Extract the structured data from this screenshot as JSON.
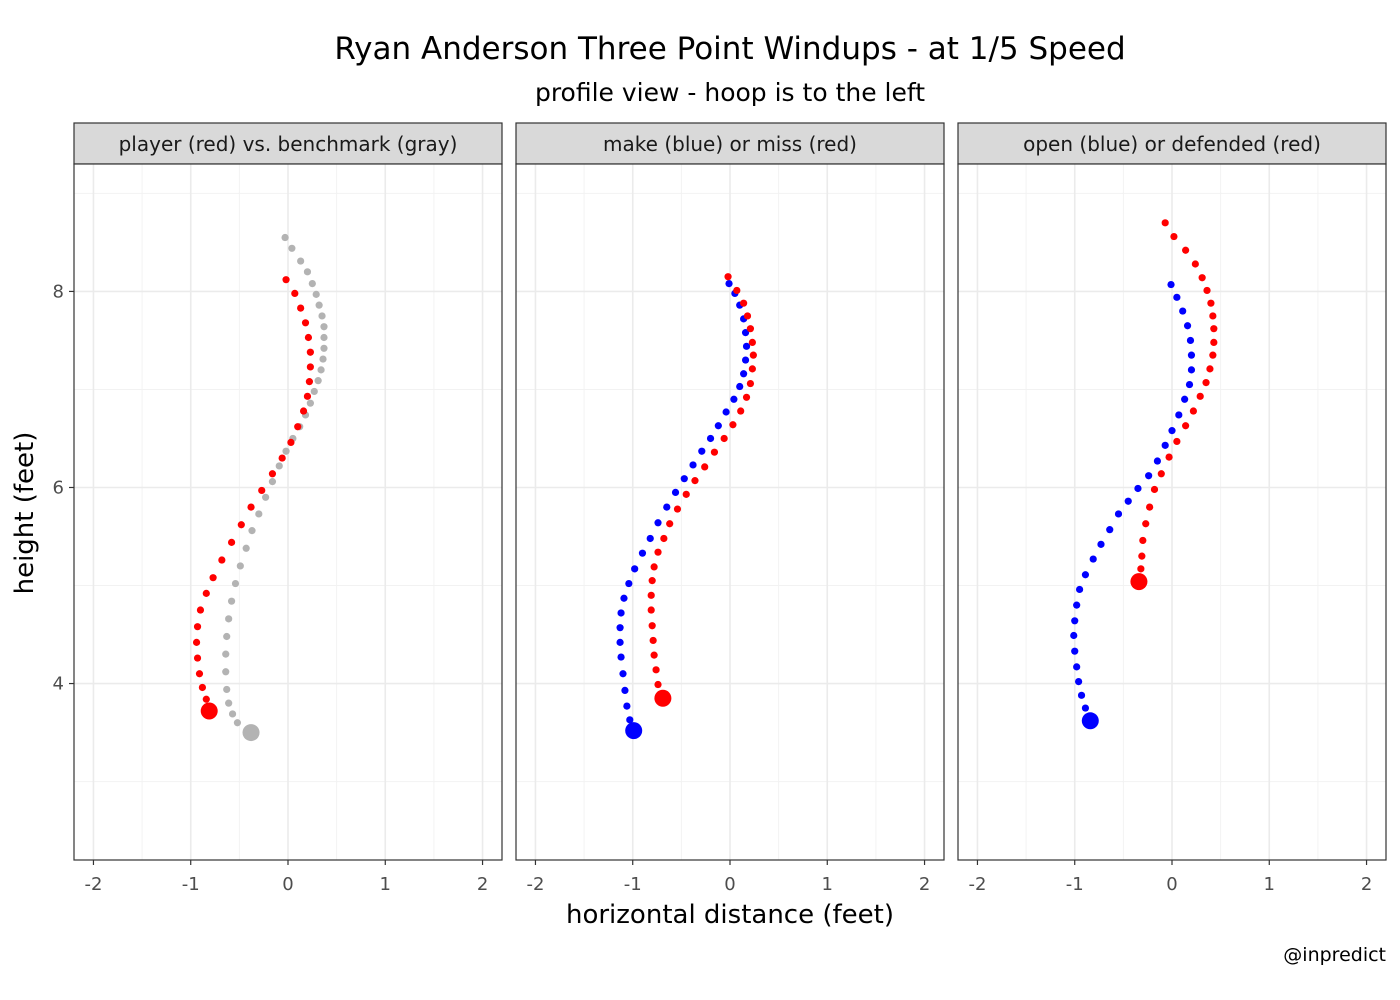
{
  "title": "Ryan Anderson Three Point Windups - at 1/5 Speed",
  "subtitle": "profile view - hoop is to the left",
  "caption": "@inpredict",
  "colors": {
    "red": "#ff0000",
    "blue": "#0000ff",
    "gray": "#b3b3b3"
  },
  "chart_data": {
    "type": "scatter",
    "xlabel": "horizontal distance (feet)",
    "ylabel": "height (feet)",
    "xlim": [
      -2.2,
      2.2
    ],
    "ylim": [
      2.2,
      9.3
    ],
    "x_ticks": [
      -2,
      -1,
      0,
      1,
      2
    ],
    "x_tick_labels": [
      "-2",
      "-1",
      "0",
      "1",
      "2"
    ],
    "y_ticks": [
      4,
      6,
      8
    ],
    "y_tick_labels": [
      "4",
      "6",
      "8"
    ],
    "grid": true,
    "facets": [
      {
        "strip": "player (red) vs. benchmark (gray)",
        "series": [
          {
            "color": "#b3b3b3",
            "end_point": [
              -0.38,
              3.5
            ],
            "points": [
              [
                -0.03,
                8.55
              ],
              [
                0.04,
                8.44
              ],
              [
                0.13,
                8.31
              ],
              [
                0.2,
                8.2
              ],
              [
                0.25,
                8.08
              ],
              [
                0.29,
                7.97
              ],
              [
                0.32,
                7.86
              ],
              [
                0.35,
                7.75
              ],
              [
                0.37,
                7.64
              ],
              [
                0.37,
                7.53
              ],
              [
                0.37,
                7.42
              ],
              [
                0.36,
                7.31
              ],
              [
                0.34,
                7.2
              ],
              [
                0.31,
                7.09
              ],
              [
                0.27,
                6.98
              ],
              [
                0.23,
                6.86
              ],
              [
                0.18,
                6.74
              ],
              [
                0.12,
                6.62
              ],
              [
                0.05,
                6.5
              ],
              [
                -0.02,
                6.37
              ],
              [
                -0.09,
                6.22
              ],
              [
                -0.16,
                6.06
              ],
              [
                -0.23,
                5.9
              ],
              [
                -0.3,
                5.73
              ],
              [
                -0.37,
                5.56
              ],
              [
                -0.43,
                5.38
              ],
              [
                -0.49,
                5.2
              ],
              [
                -0.54,
                5.02
              ],
              [
                -0.58,
                4.84
              ],
              [
                -0.61,
                4.66
              ],
              [
                -0.63,
                4.48
              ],
              [
                -0.64,
                4.3
              ],
              [
                -0.64,
                4.12
              ],
              [
                -0.63,
                3.94
              ],
              [
                -0.61,
                3.8
              ],
              [
                -0.57,
                3.69
              ],
              [
                -0.52,
                3.6
              ]
            ]
          },
          {
            "color": "#ff0000",
            "end_point": [
              -0.81,
              3.72
            ],
            "points": [
              [
                -0.02,
                8.12
              ],
              [
                0.07,
                7.98
              ],
              [
                0.13,
                7.83
              ],
              [
                0.18,
                7.68
              ],
              [
                0.21,
                7.53
              ],
              [
                0.23,
                7.38
              ],
              [
                0.23,
                7.23
              ],
              [
                0.22,
                7.08
              ],
              [
                0.2,
                6.93
              ],
              [
                0.16,
                6.78
              ],
              [
                0.1,
                6.62
              ],
              [
                0.03,
                6.46
              ],
              [
                -0.06,
                6.3
              ],
              [
                -0.16,
                6.14
              ],
              [
                -0.27,
                5.97
              ],
              [
                -0.38,
                5.8
              ],
              [
                -0.48,
                5.62
              ],
              [
                -0.58,
                5.44
              ],
              [
                -0.68,
                5.26
              ],
              [
                -0.77,
                5.08
              ],
              [
                -0.84,
                4.92
              ],
              [
                -0.9,
                4.75
              ],
              [
                -0.93,
                4.58
              ],
              [
                -0.94,
                4.42
              ],
              [
                -0.93,
                4.26
              ],
              [
                -0.91,
                4.1
              ],
              [
                -0.88,
                3.96
              ],
              [
                -0.84,
                3.84
              ]
            ]
          }
        ]
      },
      {
        "strip": "make (blue) or miss (red)",
        "series": [
          {
            "color": "#0000ff",
            "end_point": [
              -0.99,
              3.52
            ],
            "points": [
              [
                -0.01,
                8.08
              ],
              [
                0.05,
                7.98
              ],
              [
                0.1,
                7.86
              ],
              [
                0.14,
                7.72
              ],
              [
                0.16,
                7.58
              ],
              [
                0.17,
                7.44
              ],
              [
                0.16,
                7.3
              ],
              [
                0.14,
                7.16
              ],
              [
                0.1,
                7.03
              ],
              [
                0.04,
                6.9
              ],
              [
                -0.04,
                6.77
              ],
              [
                -0.12,
                6.63
              ],
              [
                -0.2,
                6.5
              ],
              [
                -0.29,
                6.37
              ],
              [
                -0.38,
                6.23
              ],
              [
                -0.47,
                6.09
              ],
              [
                -0.56,
                5.95
              ],
              [
                -0.65,
                5.8
              ],
              [
                -0.74,
                5.64
              ],
              [
                -0.82,
                5.48
              ],
              [
                -0.9,
                5.33
              ],
              [
                -0.98,
                5.17
              ],
              [
                -1.04,
                5.02
              ],
              [
                -1.09,
                4.87
              ],
              [
                -1.12,
                4.72
              ],
              [
                -1.13,
                4.57
              ],
              [
                -1.13,
                4.42
              ],
              [
                -1.12,
                4.27
              ],
              [
                -1.1,
                4.1
              ],
              [
                -1.08,
                3.93
              ],
              [
                -1.06,
                3.77
              ],
              [
                -1.03,
                3.63
              ]
            ]
          },
          {
            "color": "#ff0000",
            "end_point": [
              -0.69,
              3.85
            ],
            "points": [
              [
                -0.02,
                8.15
              ],
              [
                0.07,
                8.01
              ],
              [
                0.14,
                7.88
              ],
              [
                0.18,
                7.75
              ],
              [
                0.21,
                7.62
              ],
              [
                0.23,
                7.48
              ],
              [
                0.24,
                7.35
              ],
              [
                0.23,
                7.21
              ],
              [
                0.21,
                7.06
              ],
              [
                0.17,
                6.92
              ],
              [
                0.11,
                6.78
              ],
              [
                0.03,
                6.64
              ],
              [
                -0.06,
                6.5
              ],
              [
                -0.16,
                6.36
              ],
              [
                -0.26,
                6.21
              ],
              [
                -0.36,
                6.07
              ],
              [
                -0.45,
                5.93
              ],
              [
                -0.54,
                5.78
              ],
              [
                -0.62,
                5.63
              ],
              [
                -0.68,
                5.48
              ],
              [
                -0.74,
                5.34
              ],
              [
                -0.78,
                5.19
              ],
              [
                -0.8,
                5.05
              ],
              [
                -0.81,
                4.9
              ],
              [
                -0.81,
                4.75
              ],
              [
                -0.8,
                4.59
              ],
              [
                -0.79,
                4.44
              ],
              [
                -0.78,
                4.29
              ],
              [
                -0.76,
                4.14
              ],
              [
                -0.74,
                3.99
              ]
            ]
          }
        ]
      },
      {
        "strip": "open (blue) or defended (red)",
        "series": [
          {
            "color": "#0000ff",
            "end_point": [
              -0.84,
              3.62
            ],
            "points": [
              [
                -0.01,
                8.07
              ],
              [
                0.05,
                7.94
              ],
              [
                0.11,
                7.8
              ],
              [
                0.16,
                7.65
              ],
              [
                0.19,
                7.5
              ],
              [
                0.2,
                7.35
              ],
              [
                0.2,
                7.2
              ],
              [
                0.18,
                7.05
              ],
              [
                0.13,
                6.9
              ],
              [
                0.07,
                6.74
              ],
              [
                0,
                6.58
              ],
              [
                -0.07,
                6.43
              ],
              [
                -0.15,
                6.27
              ],
              [
                -0.24,
                6.12
              ],
              [
                -0.35,
                5.99
              ],
              [
                -0.45,
                5.86
              ],
              [
                -0.55,
                5.73
              ],
              [
                -0.64,
                5.57
              ],
              [
                -0.73,
                5.42
              ],
              [
                -0.81,
                5.27
              ],
              [
                -0.89,
                5.11
              ],
              [
                -0.95,
                4.96
              ],
              [
                -0.98,
                4.8
              ],
              [
                -1,
                4.64
              ],
              [
                -1.01,
                4.49
              ],
              [
                -1,
                4.33
              ],
              [
                -0.98,
                4.17
              ],
              [
                -0.96,
                4.02
              ],
              [
                -0.93,
                3.88
              ],
              [
                -0.89,
                3.75
              ]
            ]
          },
          {
            "color": "#ff0000",
            "end_point": [
              -0.34,
              5.04
            ],
            "points": [
              [
                -0.07,
                8.7
              ],
              [
                0.02,
                8.56
              ],
              [
                0.14,
                8.42
              ],
              [
                0.24,
                8.28
              ],
              [
                0.31,
                8.14
              ],
              [
                0.36,
                8.01
              ],
              [
                0.4,
                7.88
              ],
              [
                0.42,
                7.75
              ],
              [
                0.43,
                7.62
              ],
              [
                0.43,
                7.48
              ],
              [
                0.42,
                7.35
              ],
              [
                0.39,
                7.21
              ],
              [
                0.35,
                7.07
              ],
              [
                0.29,
                6.93
              ],
              [
                0.22,
                6.78
              ],
              [
                0.14,
                6.63
              ],
              [
                0.05,
                6.47
              ],
              [
                -0.03,
                6.31
              ],
              [
                -0.11,
                6.14
              ],
              [
                -0.18,
                5.98
              ],
              [
                -0.23,
                5.8
              ],
              [
                -0.27,
                5.63
              ],
              [
                -0.3,
                5.46
              ],
              [
                -0.31,
                5.3
              ],
              [
                -0.32,
                5.17
              ]
            ]
          }
        ]
      }
    ]
  }
}
